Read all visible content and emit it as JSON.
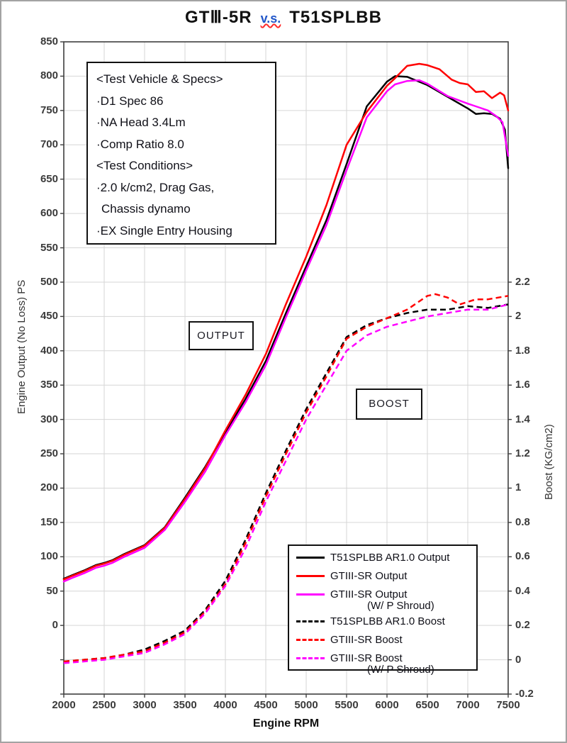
{
  "title": {
    "left": "GTⅢ-5R",
    "vs": "v.s.",
    "right": "T51SPLBB"
  },
  "annotation": {
    "lines": [
      "<Test Vehicle & Specs>",
      "·D1 Spec 86",
      "·NA Head 3.4Lm",
      "·Comp Ratio 8.0",
      "<Test Conditions>",
      "·2.0 k/cm2, Drag Gas,",
      "Chassis dynamo",
      "·EX Single Entry Housing"
    ]
  },
  "inline_labels": {
    "output": "OUTPUT",
    "boost": "BOOST"
  },
  "axes": {
    "x": {
      "label": "Engine RPM",
      "min": 2000,
      "max": 7500,
      "ticks": [
        "2000",
        "2500",
        "3000",
        "3500",
        "4000",
        "4500",
        "5000",
        "5500",
        "6000",
        "6500",
        "7000",
        "7500"
      ]
    },
    "y_left": {
      "label": "Engine Output (No Loss) PS",
      "ticks": [
        "850",
        "800",
        "750",
        "700",
        "650",
        "600",
        "550",
        "500",
        "450",
        "400",
        "350",
        "300",
        "250",
        "200",
        "150",
        "100",
        "50",
        "0"
      ]
    },
    "y_right": {
      "label": "Boost (KG/cm2)",
      "ticks": [
        "2.2",
        "2",
        "1.8",
        "1.6",
        "1.4",
        "1.2",
        "1",
        "0.8",
        "0.6",
        "0.4",
        "0.2",
        "0",
        "-0.2"
      ]
    }
  },
  "legend": {
    "items": [
      {
        "label": "T51SPLBB AR1.0 Output",
        "label2": "",
        "color": "#000000",
        "dashed": false
      },
      {
        "label": "GTIII-SR Output",
        "label2": "",
        "color": "#ff0000",
        "dashed": false
      },
      {
        "label": "GTIII-SR Output",
        "label2": "(W/ P Shroud)",
        "color": "#ff00ff",
        "dashed": false
      },
      {
        "label": "T51SPLBB AR1.0 Boost",
        "label2": "",
        "color": "#000000",
        "dashed": true
      },
      {
        "label": "GTIII-SR Boost",
        "label2": "",
        "color": "#ff0000",
        "dashed": true
      },
      {
        "label": "GTIII-SR Boost",
        "label2": "(W/ P Shroud)",
        "color": "#ff00ff",
        "dashed": true
      }
    ]
  },
  "chart_data": {
    "type": "line",
    "title": "GTⅢ-5R v.s. T51SPLBB",
    "xlabel": "Engine RPM",
    "ylabel_left": "Engine Output (No Loss) PS",
    "ylabel_right": "Boost (KG/cm2)",
    "x_range": [
      2000,
      7500
    ],
    "y_left_range": [
      -100,
      850
    ],
    "y_right_range": [
      -0.2,
      3.6
    ],
    "grid": true,
    "colors": {
      "t51": "#000000",
      "gt3": "#ff0000",
      "gt3_shroud": "#ff00ff"
    },
    "series": [
      {
        "name": "T51SPLBB AR1.0 Output",
        "axis": "left",
        "color": "#000000",
        "dashed": false,
        "points": [
          [
            2000,
            68
          ],
          [
            2100,
            73
          ],
          [
            2250,
            80
          ],
          [
            2400,
            88
          ],
          [
            2500,
            91
          ],
          [
            2600,
            95
          ],
          [
            2750,
            104
          ],
          [
            3000,
            117
          ],
          [
            3250,
            143
          ],
          [
            3500,
            186
          ],
          [
            3750,
            231
          ],
          [
            4000,
            281
          ],
          [
            4250,
            330
          ],
          [
            4500,
            385
          ],
          [
            4750,
            455
          ],
          [
            5000,
            523
          ],
          [
            5250,
            590
          ],
          [
            5500,
            672
          ],
          [
            5750,
            756
          ],
          [
            6000,
            792
          ],
          [
            6100,
            800
          ],
          [
            6250,
            799
          ],
          [
            6500,
            787
          ],
          [
            6750,
            770
          ],
          [
            7000,
            753
          ],
          [
            7100,
            745
          ],
          [
            7200,
            746
          ],
          [
            7300,
            745
          ],
          [
            7400,
            738
          ],
          [
            7460,
            722
          ],
          [
            7500,
            666
          ]
        ]
      },
      {
        "name": "GTIII-SR Output",
        "axis": "left",
        "color": "#ff0000",
        "dashed": false,
        "points": [
          [
            2000,
            67
          ],
          [
            2100,
            72
          ],
          [
            2250,
            79
          ],
          [
            2400,
            87
          ],
          [
            2500,
            90
          ],
          [
            2600,
            94
          ],
          [
            2750,
            103
          ],
          [
            3000,
            116
          ],
          [
            3250,
            142
          ],
          [
            3500,
            184
          ],
          [
            3750,
            229
          ],
          [
            4000,
            284
          ],
          [
            4250,
            336
          ],
          [
            4500,
            395
          ],
          [
            4750,
            468
          ],
          [
            5000,
            537
          ],
          [
            5250,
            612
          ],
          [
            5500,
            700
          ],
          [
            5750,
            748
          ],
          [
            6000,
            786
          ],
          [
            6100,
            797
          ],
          [
            6250,
            815
          ],
          [
            6400,
            818
          ],
          [
            6500,
            816
          ],
          [
            6650,
            810
          ],
          [
            6800,
            795
          ],
          [
            6900,
            790
          ],
          [
            7000,
            788
          ],
          [
            7100,
            777
          ],
          [
            7200,
            778
          ],
          [
            7300,
            768
          ],
          [
            7400,
            776
          ],
          [
            7450,
            772
          ],
          [
            7500,
            750
          ]
        ]
      },
      {
        "name": "GTIII-SR Output (W/ P Shroud)",
        "axis": "left",
        "color": "#ff00ff",
        "dashed": false,
        "points": [
          [
            2000,
            64
          ],
          [
            2100,
            69
          ],
          [
            2250,
            76
          ],
          [
            2400,
            84
          ],
          [
            2500,
            87
          ],
          [
            2600,
            91
          ],
          [
            2750,
            100
          ],
          [
            3000,
            113
          ],
          [
            3250,
            139
          ],
          [
            3500,
            180
          ],
          [
            3750,
            224
          ],
          [
            4000,
            277
          ],
          [
            4250,
            325
          ],
          [
            4500,
            379
          ],
          [
            4750,
            449
          ],
          [
            5000,
            517
          ],
          [
            5250,
            583
          ],
          [
            5500,
            663
          ],
          [
            5750,
            740
          ],
          [
            6000,
            778
          ],
          [
            6100,
            788
          ],
          [
            6250,
            793
          ],
          [
            6400,
            794
          ],
          [
            6500,
            789
          ],
          [
            6750,
            771
          ],
          [
            7000,
            760
          ],
          [
            7100,
            756
          ],
          [
            7250,
            750
          ],
          [
            7350,
            742
          ],
          [
            7430,
            733
          ],
          [
            7470,
            705
          ],
          [
            7500,
            684
          ]
        ]
      },
      {
        "name": "T51SPLBB AR1.0 Boost",
        "axis": "right",
        "color": "#000000",
        "dashed": true,
        "points": [
          [
            2000,
            -0.01
          ],
          [
            2250,
            0.0
          ],
          [
            2500,
            0.01
          ],
          [
            2750,
            0.03
          ],
          [
            3000,
            0.06
          ],
          [
            3250,
            0.11
          ],
          [
            3500,
            0.17
          ],
          [
            3750,
            0.29
          ],
          [
            4000,
            0.46
          ],
          [
            4250,
            0.7
          ],
          [
            4500,
            0.97
          ],
          [
            4750,
            1.22
          ],
          [
            5000,
            1.46
          ],
          [
            5250,
            1.67
          ],
          [
            5500,
            1.88
          ],
          [
            5750,
            1.95
          ],
          [
            6000,
            1.99
          ],
          [
            6250,
            2.02
          ],
          [
            6500,
            2.04
          ],
          [
            6750,
            2.04
          ],
          [
            7000,
            2.06
          ],
          [
            7250,
            2.05
          ],
          [
            7500,
            2.07
          ]
        ]
      },
      {
        "name": "GTIII-SR Boost",
        "axis": "right",
        "color": "#ff0000",
        "dashed": true,
        "points": [
          [
            2000,
            -0.01
          ],
          [
            2250,
            0.0
          ],
          [
            2500,
            0.01
          ],
          [
            2750,
            0.03
          ],
          [
            3000,
            0.05
          ],
          [
            3250,
            0.1
          ],
          [
            3500,
            0.16
          ],
          [
            3750,
            0.28
          ],
          [
            4000,
            0.44
          ],
          [
            4250,
            0.68
          ],
          [
            4500,
            0.95
          ],
          [
            4750,
            1.2
          ],
          [
            5000,
            1.44
          ],
          [
            5250,
            1.65
          ],
          [
            5500,
            1.87
          ],
          [
            5750,
            1.94
          ],
          [
            6000,
            1.99
          ],
          [
            6250,
            2.04
          ],
          [
            6500,
            2.12
          ],
          [
            6600,
            2.13
          ],
          [
            6750,
            2.11
          ],
          [
            6900,
            2.07
          ],
          [
            7100,
            2.1
          ],
          [
            7250,
            2.1
          ],
          [
            7500,
            2.12
          ]
        ]
      },
      {
        "name": "GTIII-SR Boost (W/ P Shroud)",
        "axis": "right",
        "color": "#ff00ff",
        "dashed": true,
        "points": [
          [
            2000,
            -0.02
          ],
          [
            2250,
            -0.01
          ],
          [
            2500,
            0.0
          ],
          [
            2750,
            0.02
          ],
          [
            3000,
            0.04
          ],
          [
            3250,
            0.09
          ],
          [
            3500,
            0.15
          ],
          [
            3750,
            0.27
          ],
          [
            4000,
            0.43
          ],
          [
            4250,
            0.65
          ],
          [
            4500,
            0.92
          ],
          [
            4750,
            1.16
          ],
          [
            5000,
            1.4
          ],
          [
            5250,
            1.6
          ],
          [
            5500,
            1.8
          ],
          [
            5750,
            1.89
          ],
          [
            6000,
            1.94
          ],
          [
            6250,
            1.97
          ],
          [
            6500,
            2.0
          ],
          [
            6750,
            2.02
          ],
          [
            7000,
            2.04
          ],
          [
            7250,
            2.04
          ],
          [
            7500,
            2.07
          ]
        ]
      }
    ]
  }
}
